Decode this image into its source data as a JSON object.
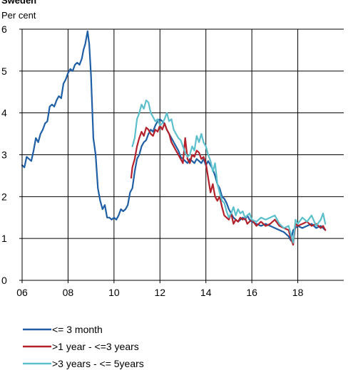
{
  "chart_data": {
    "type": "line",
    "title": "Sweden",
    "ylabel": "Per cent",
    "xlabel": "",
    "xlim": [
      2006,
      2020
    ],
    "ylim": [
      0,
      6
    ],
    "xticks": [
      2006,
      2008,
      2010,
      2012,
      2014,
      2016,
      2018
    ],
    "xtick_labels": [
      "06",
      "08",
      "10",
      "12",
      "14",
      "16",
      "18"
    ],
    "yticks": [
      0,
      1,
      2,
      3,
      4,
      5,
      6
    ],
    "ytick_labels": [
      "0",
      "1",
      "2",
      "3",
      "4",
      "5",
      "6"
    ],
    "grid": true,
    "legend_position": "bottom",
    "series": [
      {
        "name": "<= 3 month",
        "color": "#1f5fa6",
        "x": [
          2006.0,
          2006.1,
          2006.2,
          2006.3,
          2006.4,
          2006.5,
          2006.6,
          2006.7,
          2006.8,
          2006.9,
          2007.0,
          2007.1,
          2007.2,
          2007.3,
          2007.4,
          2007.5,
          2007.6,
          2007.7,
          2007.8,
          2007.9,
          2008.0,
          2008.1,
          2008.2,
          2008.3,
          2008.4,
          2008.5,
          2008.6,
          2008.67,
          2008.75,
          2008.85,
          2008.92,
          2009.0,
          2009.1,
          2009.2,
          2009.3,
          2009.4,
          2009.5,
          2009.6,
          2009.7,
          2009.8,
          2009.9,
          2010.0,
          2010.1,
          2010.2,
          2010.3,
          2010.4,
          2010.5,
          2010.6,
          2010.7,
          2010.8,
          2010.9,
          2011.0,
          2011.1,
          2011.2,
          2011.3,
          2011.4,
          2011.5,
          2011.6,
          2011.7,
          2011.8,
          2011.9,
          2012.0,
          2012.1,
          2012.2,
          2012.3,
          2012.4,
          2012.5,
          2012.6,
          2012.7,
          2012.8,
          2012.9,
          2013.0,
          2013.1,
          2013.2,
          2013.3,
          2013.4,
          2013.5,
          2013.6,
          2013.7,
          2013.8,
          2013.9,
          2014.0,
          2014.1,
          2014.2,
          2014.3,
          2014.4,
          2014.5,
          2014.6,
          2014.7,
          2014.8,
          2014.9,
          2015.0,
          2015.1,
          2015.2,
          2015.3,
          2015.4,
          2015.5,
          2015.6,
          2015.7,
          2015.8,
          2015.9,
          2016.0,
          2016.2,
          2016.4,
          2016.6,
          2016.8,
          2017.0,
          2017.2,
          2017.4,
          2017.6,
          2017.7,
          2017.8,
          2017.9,
          2018.0,
          2018.2,
          2018.4,
          2018.6,
          2018.8,
          2019.0,
          2019.1,
          2019.2
        ],
        "values": [
          2.75,
          2.7,
          2.95,
          2.9,
          2.85,
          3.1,
          3.4,
          3.3,
          3.5,
          3.6,
          3.75,
          3.8,
          4.15,
          4.2,
          4.15,
          4.3,
          4.4,
          4.35,
          4.7,
          4.8,
          4.95,
          5.05,
          5.0,
          5.15,
          5.2,
          5.15,
          5.3,
          5.5,
          5.65,
          5.95,
          5.65,
          4.9,
          3.4,
          3.0,
          2.2,
          1.9,
          1.7,
          1.8,
          1.5,
          1.5,
          1.45,
          1.5,
          1.45,
          1.55,
          1.7,
          1.65,
          1.7,
          1.8,
          2.1,
          2.2,
          2.6,
          2.9,
          3.0,
          3.2,
          3.3,
          3.35,
          3.5,
          3.6,
          3.55,
          3.7,
          3.8,
          3.85,
          3.8,
          3.75,
          3.6,
          3.5,
          3.4,
          3.3,
          3.2,
          3.1,
          2.95,
          2.9,
          2.85,
          2.8,
          2.9,
          2.85,
          2.8,
          2.9,
          2.85,
          2.8,
          2.9,
          2.75,
          2.85,
          2.75,
          2.65,
          2.5,
          2.3,
          2.2,
          2.0,
          1.95,
          1.85,
          1.7,
          1.6,
          1.5,
          1.45,
          1.4,
          1.45,
          1.5,
          1.45,
          1.55,
          1.45,
          1.4,
          1.35,
          1.3,
          1.35,
          1.3,
          1.25,
          1.2,
          1.15,
          1.05,
          0.95,
          1.2,
          1.25,
          1.3,
          1.25,
          1.3,
          1.35,
          1.25,
          1.3,
          1.25,
          1.2
        ]
      },
      {
        "name": ">1 year - <=3 years",
        "color": "#b5212b",
        "x": [
          2010.75,
          2010.8,
          2010.9,
          2011.0,
          2011.1,
          2011.2,
          2011.3,
          2011.4,
          2011.5,
          2011.6,
          2011.7,
          2011.8,
          2011.9,
          2012.0,
          2012.1,
          2012.2,
          2012.3,
          2012.4,
          2012.5,
          2012.6,
          2012.7,
          2012.8,
          2012.9,
          2013.0,
          2013.1,
          2013.2,
          2013.3,
          2013.4,
          2013.5,
          2013.6,
          2013.7,
          2013.8,
          2013.9,
          2014.0,
          2014.1,
          2014.2,
          2014.3,
          2014.4,
          2014.5,
          2014.6,
          2014.7,
          2014.8,
          2014.9,
          2015.0,
          2015.1,
          2015.2,
          2015.3,
          2015.4,
          2015.5,
          2015.6,
          2015.7,
          2015.8,
          2015.9,
          2016.0,
          2016.2,
          2016.4,
          2016.6,
          2016.8,
          2017.0,
          2017.2,
          2017.4,
          2017.6,
          2017.7,
          2017.8,
          2017.9,
          2018.0,
          2018.2,
          2018.4,
          2018.6,
          2018.8,
          2019.0,
          2019.1,
          2019.2
        ],
        "values": [
          2.45,
          2.7,
          2.9,
          3.2,
          3.4,
          3.55,
          3.45,
          3.65,
          3.6,
          3.5,
          3.45,
          3.6,
          3.55,
          3.7,
          3.6,
          3.75,
          3.6,
          3.5,
          3.3,
          3.2,
          3.1,
          3.0,
          2.9,
          2.8,
          3.4,
          2.9,
          2.8,
          3.0,
          2.95,
          3.1,
          3.05,
          2.9,
          2.95,
          2.8,
          2.45,
          2.1,
          2.3,
          2.0,
          1.9,
          2.0,
          1.75,
          1.55,
          1.5,
          1.45,
          1.6,
          1.35,
          1.45,
          1.4,
          1.5,
          1.45,
          1.5,
          1.35,
          1.4,
          1.45,
          1.3,
          1.4,
          1.3,
          1.35,
          1.45,
          1.3,
          1.25,
          1.2,
          1.0,
          0.85,
          1.35,
          1.3,
          1.35,
          1.4,
          1.3,
          1.35,
          1.25,
          1.3,
          1.2
        ]
      },
      {
        "name": ">3 years - <= 5years",
        "color": "#5bbfcc",
        "x": [
          2010.8,
          2010.9,
          2011.0,
          2011.1,
          2011.2,
          2011.3,
          2011.4,
          2011.5,
          2011.6,
          2011.7,
          2011.8,
          2011.9,
          2012.0,
          2012.1,
          2012.2,
          2012.3,
          2012.4,
          2012.5,
          2012.6,
          2012.7,
          2012.8,
          2012.9,
          2013.0,
          2013.1,
          2013.2,
          2013.3,
          2013.4,
          2013.5,
          2013.6,
          2013.7,
          2013.8,
          2013.9,
          2014.0,
          2014.1,
          2014.2,
          2014.3,
          2014.4,
          2014.5,
          2014.6,
          2014.7,
          2014.8,
          2014.9,
          2015.0,
          2015.1,
          2015.2,
          2015.3,
          2015.4,
          2015.5,
          2015.6,
          2015.7,
          2015.8,
          2015.9,
          2016.0,
          2016.2,
          2016.4,
          2016.6,
          2016.8,
          2017.0,
          2017.2,
          2017.4,
          2017.6,
          2017.7,
          2017.8,
          2017.9,
          2018.0,
          2018.2,
          2018.4,
          2018.6,
          2018.8,
          2019.0,
          2019.1,
          2019.2
        ],
        "values": [
          3.2,
          3.4,
          3.85,
          4.0,
          4.2,
          4.1,
          4.3,
          4.25,
          4.0,
          3.9,
          3.8,
          3.85,
          3.7,
          3.75,
          3.85,
          4.0,
          3.8,
          3.85,
          3.6,
          3.5,
          3.4,
          3.35,
          3.2,
          3.05,
          2.95,
          3.0,
          3.2,
          3.1,
          3.45,
          3.3,
          3.5,
          3.3,
          3.2,
          3.0,
          2.85,
          2.6,
          2.8,
          2.3,
          2.1,
          1.9,
          1.85,
          1.65,
          1.5,
          1.6,
          1.75,
          1.55,
          1.7,
          1.6,
          1.65,
          1.5,
          1.55,
          1.6,
          1.45,
          1.4,
          1.5,
          1.45,
          1.5,
          1.55,
          1.35,
          1.25,
          1.3,
          1.1,
          0.9,
          1.45,
          1.35,
          1.5,
          1.4,
          1.55,
          1.3,
          1.45,
          1.6,
          1.35
        ]
      }
    ]
  }
}
